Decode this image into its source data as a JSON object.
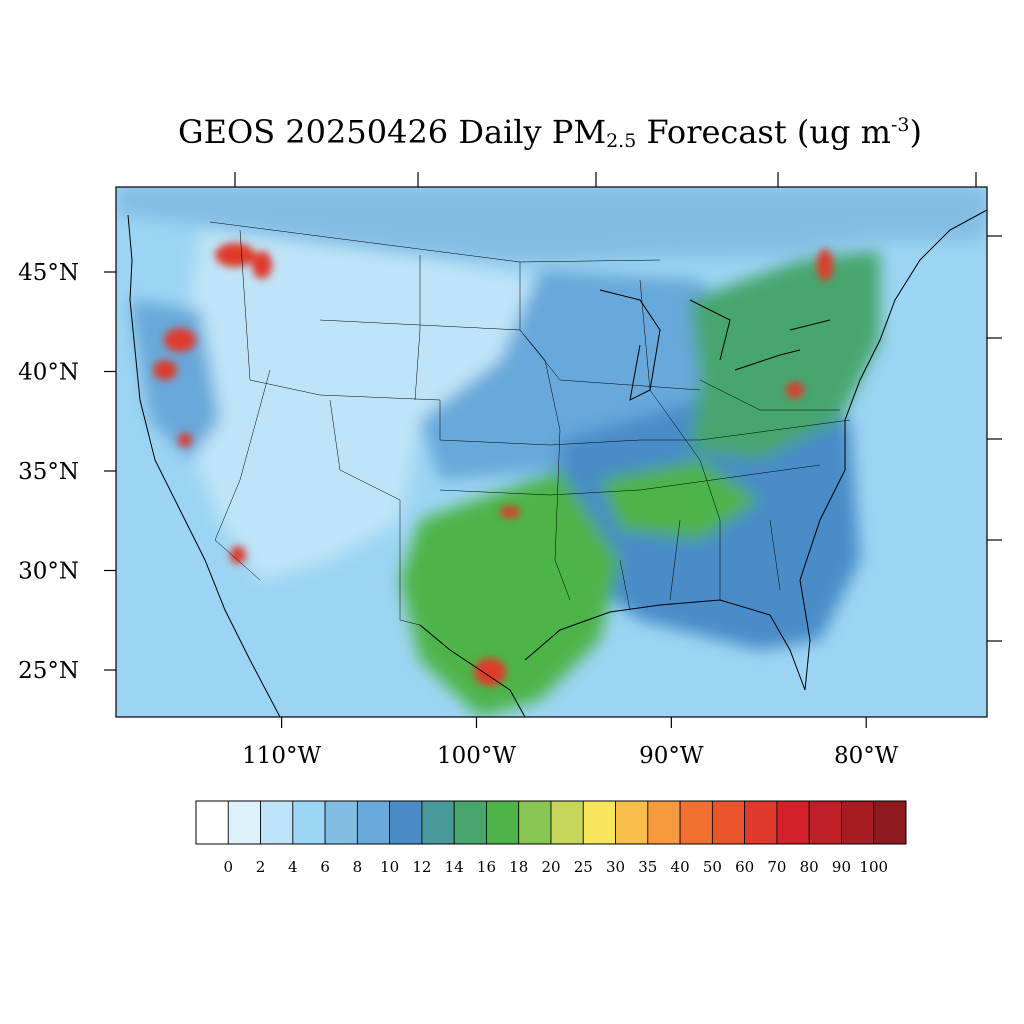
{
  "title": {
    "main": "GEOS 20250426 Daily PM",
    "subscript": "2.5",
    "suffix": " Forecast (ug m",
    "superscript": "-3",
    "close": ")"
  },
  "axes": {
    "lon_labels": [
      "110°W",
      "100°W",
      "90°W",
      "80°W"
    ],
    "lon_values": [
      -110,
      -100,
      -90,
      -80
    ],
    "lat_labels": [
      "25°N",
      "30°N",
      "35°N",
      "40°N",
      "45°N"
    ],
    "lat_values": [
      25,
      30,
      35,
      40,
      45
    ],
    "lon_range": [
      -124,
      -75
    ],
    "lat_range": [
      22.8,
      49.5
    ]
  },
  "colorbar": {
    "labels": [
      "0",
      "2",
      "4",
      "6",
      "8",
      "10",
      "12",
      "14",
      "16",
      "18",
      "20",
      "25",
      "30",
      "35",
      "40",
      "50",
      "60",
      "70",
      "80",
      "90",
      "100"
    ],
    "colors": [
      "#ffffff",
      "#ddf1fb",
      "#bfe4f7",
      "#9cd5f3",
      "#83bde4",
      "#68a8da",
      "#4a8cc8",
      "#49999a",
      "#46a66e",
      "#4db44a",
      "#89c553",
      "#c5d65b",
      "#f7e65c",
      "#f8be4c",
      "#f69a3d",
      "#f17031",
      "#e9542d",
      "#df3a2b",
      "#d42029",
      "#bf1f26",
      "#a81d23",
      "#8e1a1f"
    ]
  },
  "map": {
    "colors": {
      "ocean": "#9cd5f3",
      "west_interior": "#bfe4f7",
      "great_plains": "#68a8da",
      "southeast": "#4a8cc8",
      "texas": "#4db44a",
      "northeast": "#46a66e",
      "hotspot": "#df3a2b",
      "canada": "#83bde4"
    }
  }
}
